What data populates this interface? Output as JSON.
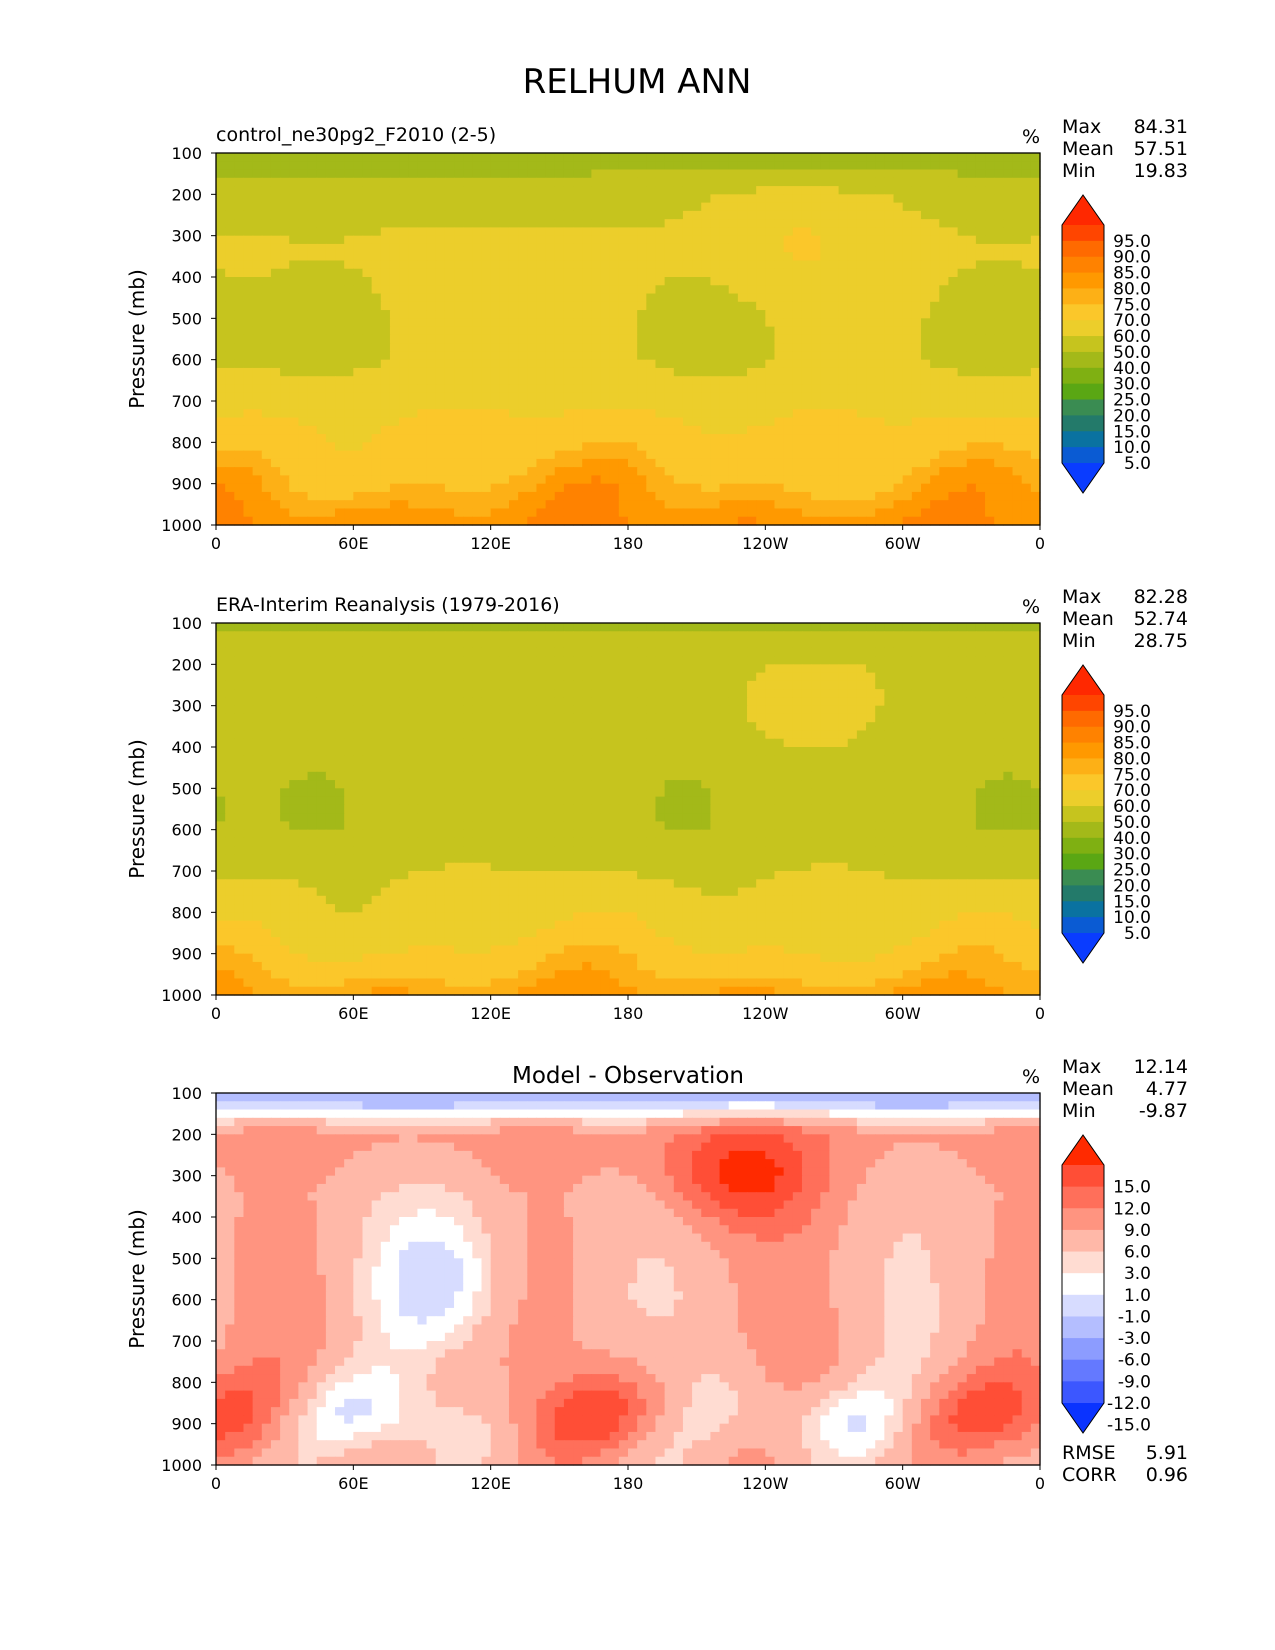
{
  "figure": {
    "title": "RELHUM ANN"
  },
  "panel_labels": {
    "max": "Max",
    "mean": "Mean",
    "min": "Min",
    "rmse": "RMSE",
    "corr": "CORR"
  },
  "chart_data": [
    {
      "type": "heatmap",
      "title": "control_ne30pg2_F2010 (2-5)",
      "units": "%",
      "ylabel": "Pressure (mb)",
      "x_ticks": [
        "0",
        "60E",
        "120E",
        "180",
        "120W",
        "60W",
        "0"
      ],
      "y_ticks": [
        "100",
        "200",
        "300",
        "400",
        "500",
        "600",
        "700",
        "800",
        "900",
        "1000"
      ],
      "xlim": [
        0,
        360
      ],
      "ylim": [
        100,
        1000
      ],
      "stats": {
        "max": "84.31",
        "mean": "57.51",
        "min": "19.83"
      },
      "colorbar": {
        "levels": [
          "95.0",
          "90.0",
          "85.0",
          "80.0",
          "75.0",
          "70.0",
          "60.0",
          "50.0",
          "40.0",
          "30.0",
          "25.0",
          "20.0",
          "15.0",
          "10.0",
          "5.0"
        ],
        "colors": [
          "#ff2800",
          "#ff4500",
          "#ff6a00",
          "#ff8200",
          "#ff9900",
          "#fdb016",
          "#fbc72a",
          "#ecce2b",
          "#c6c41e",
          "#a3b919",
          "#7fb012",
          "#5aa714",
          "#3a8c52",
          "#237a6a",
          "#0a72a0",
          "#0a5bd3",
          "#0a3cff"
        ],
        "extend": "both"
      },
      "field": {
        "strat": 32,
        "upper": 48,
        "mid": 52,
        "low": 68,
        "surface": 80,
        "moist_upper_lon": 255,
        "dry_mid_lons": [
          45,
          215,
          340
        ]
      }
    },
    {
      "type": "heatmap",
      "title": "ERA-Interim Reanalysis (1979-2016)",
      "units": "%",
      "ylabel": "Pressure (mb)",
      "x_ticks": [
        "0",
        "60E",
        "120E",
        "180",
        "120W",
        "60W",
        "0"
      ],
      "y_ticks": [
        "100",
        "200",
        "300",
        "400",
        "500",
        "600",
        "700",
        "800",
        "900",
        "1000"
      ],
      "xlim": [
        0,
        360
      ],
      "ylim": [
        100,
        1000
      ],
      "stats": {
        "max": "82.28",
        "mean": "52.74",
        "min": "28.75"
      },
      "colorbar": {
        "levels": [
          "95.0",
          "90.0",
          "85.0",
          "80.0",
          "75.0",
          "70.0",
          "60.0",
          "50.0",
          "40.0",
          "30.0",
          "25.0",
          "20.0",
          "15.0",
          "10.0",
          "5.0"
        ],
        "colors": [
          "#ff2800",
          "#ff4500",
          "#ff6a00",
          "#ff8200",
          "#ff9900",
          "#fdb016",
          "#fbc72a",
          "#ecce2b",
          "#c6c41e",
          "#a3b919",
          "#7fb012",
          "#5aa714",
          "#3a8c52",
          "#237a6a",
          "#0a72a0",
          "#0a5bd3",
          "#0a3cff"
        ],
        "extend": "both"
      },
      "field": {
        "strat": 38,
        "upper": 46,
        "mid": 45,
        "low": 58,
        "surface": 76,
        "moist_upper_lon": 260,
        "dry_mid_lons": [
          45,
          205,
          345
        ]
      }
    },
    {
      "type": "heatmap",
      "title": "Model - Observation",
      "units": "%",
      "ylabel": "Pressure (mb)",
      "x_ticks": [
        "0",
        "60E",
        "120E",
        "180",
        "120W",
        "60W",
        "0"
      ],
      "y_ticks": [
        "100",
        "200",
        "300",
        "400",
        "500",
        "600",
        "700",
        "800",
        "900",
        "1000"
      ],
      "xlim": [
        0,
        360
      ],
      "ylim": [
        100,
        1000
      ],
      "stats": {
        "max": "12.14",
        "mean": "4.77",
        "min": "-9.87"
      },
      "rmse": "5.91",
      "corr": "0.96",
      "colorbar": {
        "levels": [
          "15.0",
          "12.0",
          "9.0",
          "6.0",
          "3.0",
          "1.0",
          "-1.0",
          "-3.0",
          "-6.0",
          "-9.0",
          "-12.0",
          "-15.0"
        ],
        "colors": [
          "#ff2a00",
          "#ff4e36",
          "#ff6f5a",
          "#ff9480",
          "#ffb8a8",
          "#ffdcd2",
          "#ffffff",
          "#d7dcff",
          "#b4beff",
          "#8c9cff",
          "#6479ff",
          "#3c57ff",
          "#0a33ff"
        ],
        "extend": "both"
      },
      "field": {
        "strat": -7,
        "upper": 7,
        "mid": 5,
        "low": 6,
        "surface": 5,
        "moist_upper_lon": 230,
        "dry_mid_lons": [
          100
        ]
      }
    }
  ]
}
